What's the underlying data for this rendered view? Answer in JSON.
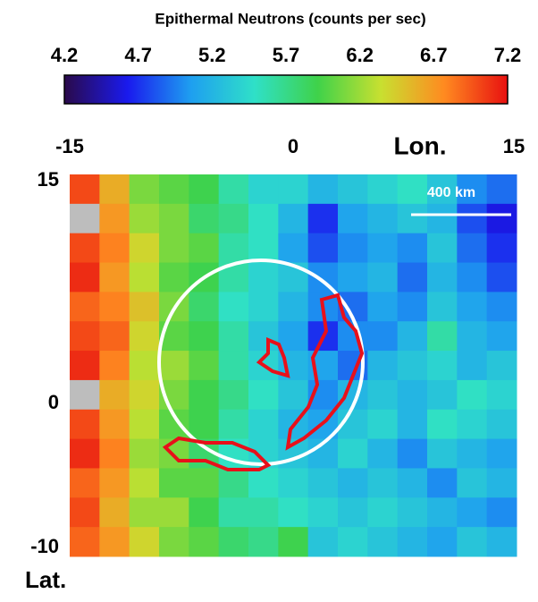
{
  "chart_data": {
    "type": "heatmap",
    "title": "Epithermal Neutrons (counts per sec)",
    "clim": [
      4.2,
      7.2
    ],
    "colorbar_ticks": [
      4.2,
      4.7,
      5.2,
      5.7,
      6.2,
      6.7,
      7.2
    ],
    "colorscale": [
      "#2a0a4a",
      "#1a1aee",
      "#1e9ff0",
      "#2fe0c8",
      "#3fd24a",
      "#c8e030",
      "#ff8a20",
      "#e81010"
    ],
    "null_color": "#bdbdbd",
    "xlabel": "Lon.",
    "ylabel": "Lat.",
    "xlim": [
      -15,
      15
    ],
    "xticks": [
      -15,
      0,
      15
    ],
    "ylim": [
      -10,
      15
    ],
    "yticks": [
      -10,
      0,
      15
    ],
    "scale_bar_label": "400 km",
    "values": [
      [
        7.0,
        6.6,
        6.1,
        6.0,
        5.9,
        5.6,
        5.4,
        5.4,
        5.2,
        5.3,
        5.4,
        5.5,
        5.3,
        5.0,
        4.9
      ],
      [
        null,
        6.7,
        6.2,
        6.1,
        5.8,
        5.7,
        5.5,
        5.2,
        4.7,
        5.1,
        5.2,
        5.3,
        5.2,
        4.8,
        4.6
      ],
      [
        7.0,
        6.8,
        6.4,
        6.1,
        6.0,
        5.6,
        5.5,
        5.1,
        4.8,
        5.0,
        5.1,
        5.0,
        5.3,
        4.9,
        4.7
      ],
      [
        7.1,
        6.7,
        6.3,
        6.0,
        5.9,
        5.6,
        5.4,
        5.3,
        5.0,
        5.1,
        5.2,
        4.9,
        5.2,
        5.0,
        4.8
      ],
      [
        6.9,
        6.8,
        6.5,
        6.1,
        5.8,
        5.5,
        5.4,
        5.2,
        5.0,
        4.9,
        5.1,
        5.0,
        5.3,
        5.1,
        5.0
      ],
      [
        7.0,
        6.9,
        6.4,
        6.0,
        5.9,
        5.6,
        5.3,
        5.1,
        4.7,
        5.0,
        5.0,
        5.2,
        5.6,
        5.2,
        5.1
      ],
      [
        7.1,
        6.8,
        6.3,
        6.2,
        6.0,
        5.6,
        5.4,
        5.2,
        5.1,
        4.9,
        5.2,
        5.3,
        5.4,
        5.2,
        5.3
      ],
      [
        null,
        6.6,
        6.4,
        6.1,
        5.9,
        5.7,
        5.5,
        5.3,
        5.0,
        5.2,
        5.3,
        5.2,
        5.3,
        5.5,
        5.4
      ],
      [
        7.0,
        6.7,
        6.3,
        6.0,
        5.9,
        5.6,
        5.4,
        5.2,
        5.1,
        5.3,
        5.4,
        5.2,
        5.5,
        5.4,
        5.3
      ],
      [
        7.1,
        6.8,
        6.2,
        6.1,
        5.8,
        5.5,
        5.4,
        5.3,
        5.2,
        5.4,
        5.2,
        5.0,
        5.3,
        5.2,
        5.1
      ],
      [
        6.9,
        6.7,
        6.3,
        6.0,
        6.0,
        5.7,
        5.5,
        5.4,
        5.3,
        5.2,
        5.3,
        5.2,
        5.0,
        5.3,
        5.2
      ],
      [
        7.0,
        6.6,
        6.2,
        6.2,
        5.9,
        5.6,
        5.6,
        5.5,
        5.4,
        5.3,
        5.4,
        5.3,
        5.2,
        5.1,
        5.0
      ],
      [
        6.9,
        6.7,
        6.4,
        6.1,
        6.0,
        5.8,
        5.7,
        5.9,
        5.3,
        5.4,
        5.3,
        5.2,
        5.1,
        5.3,
        5.2
      ]
    ]
  }
}
